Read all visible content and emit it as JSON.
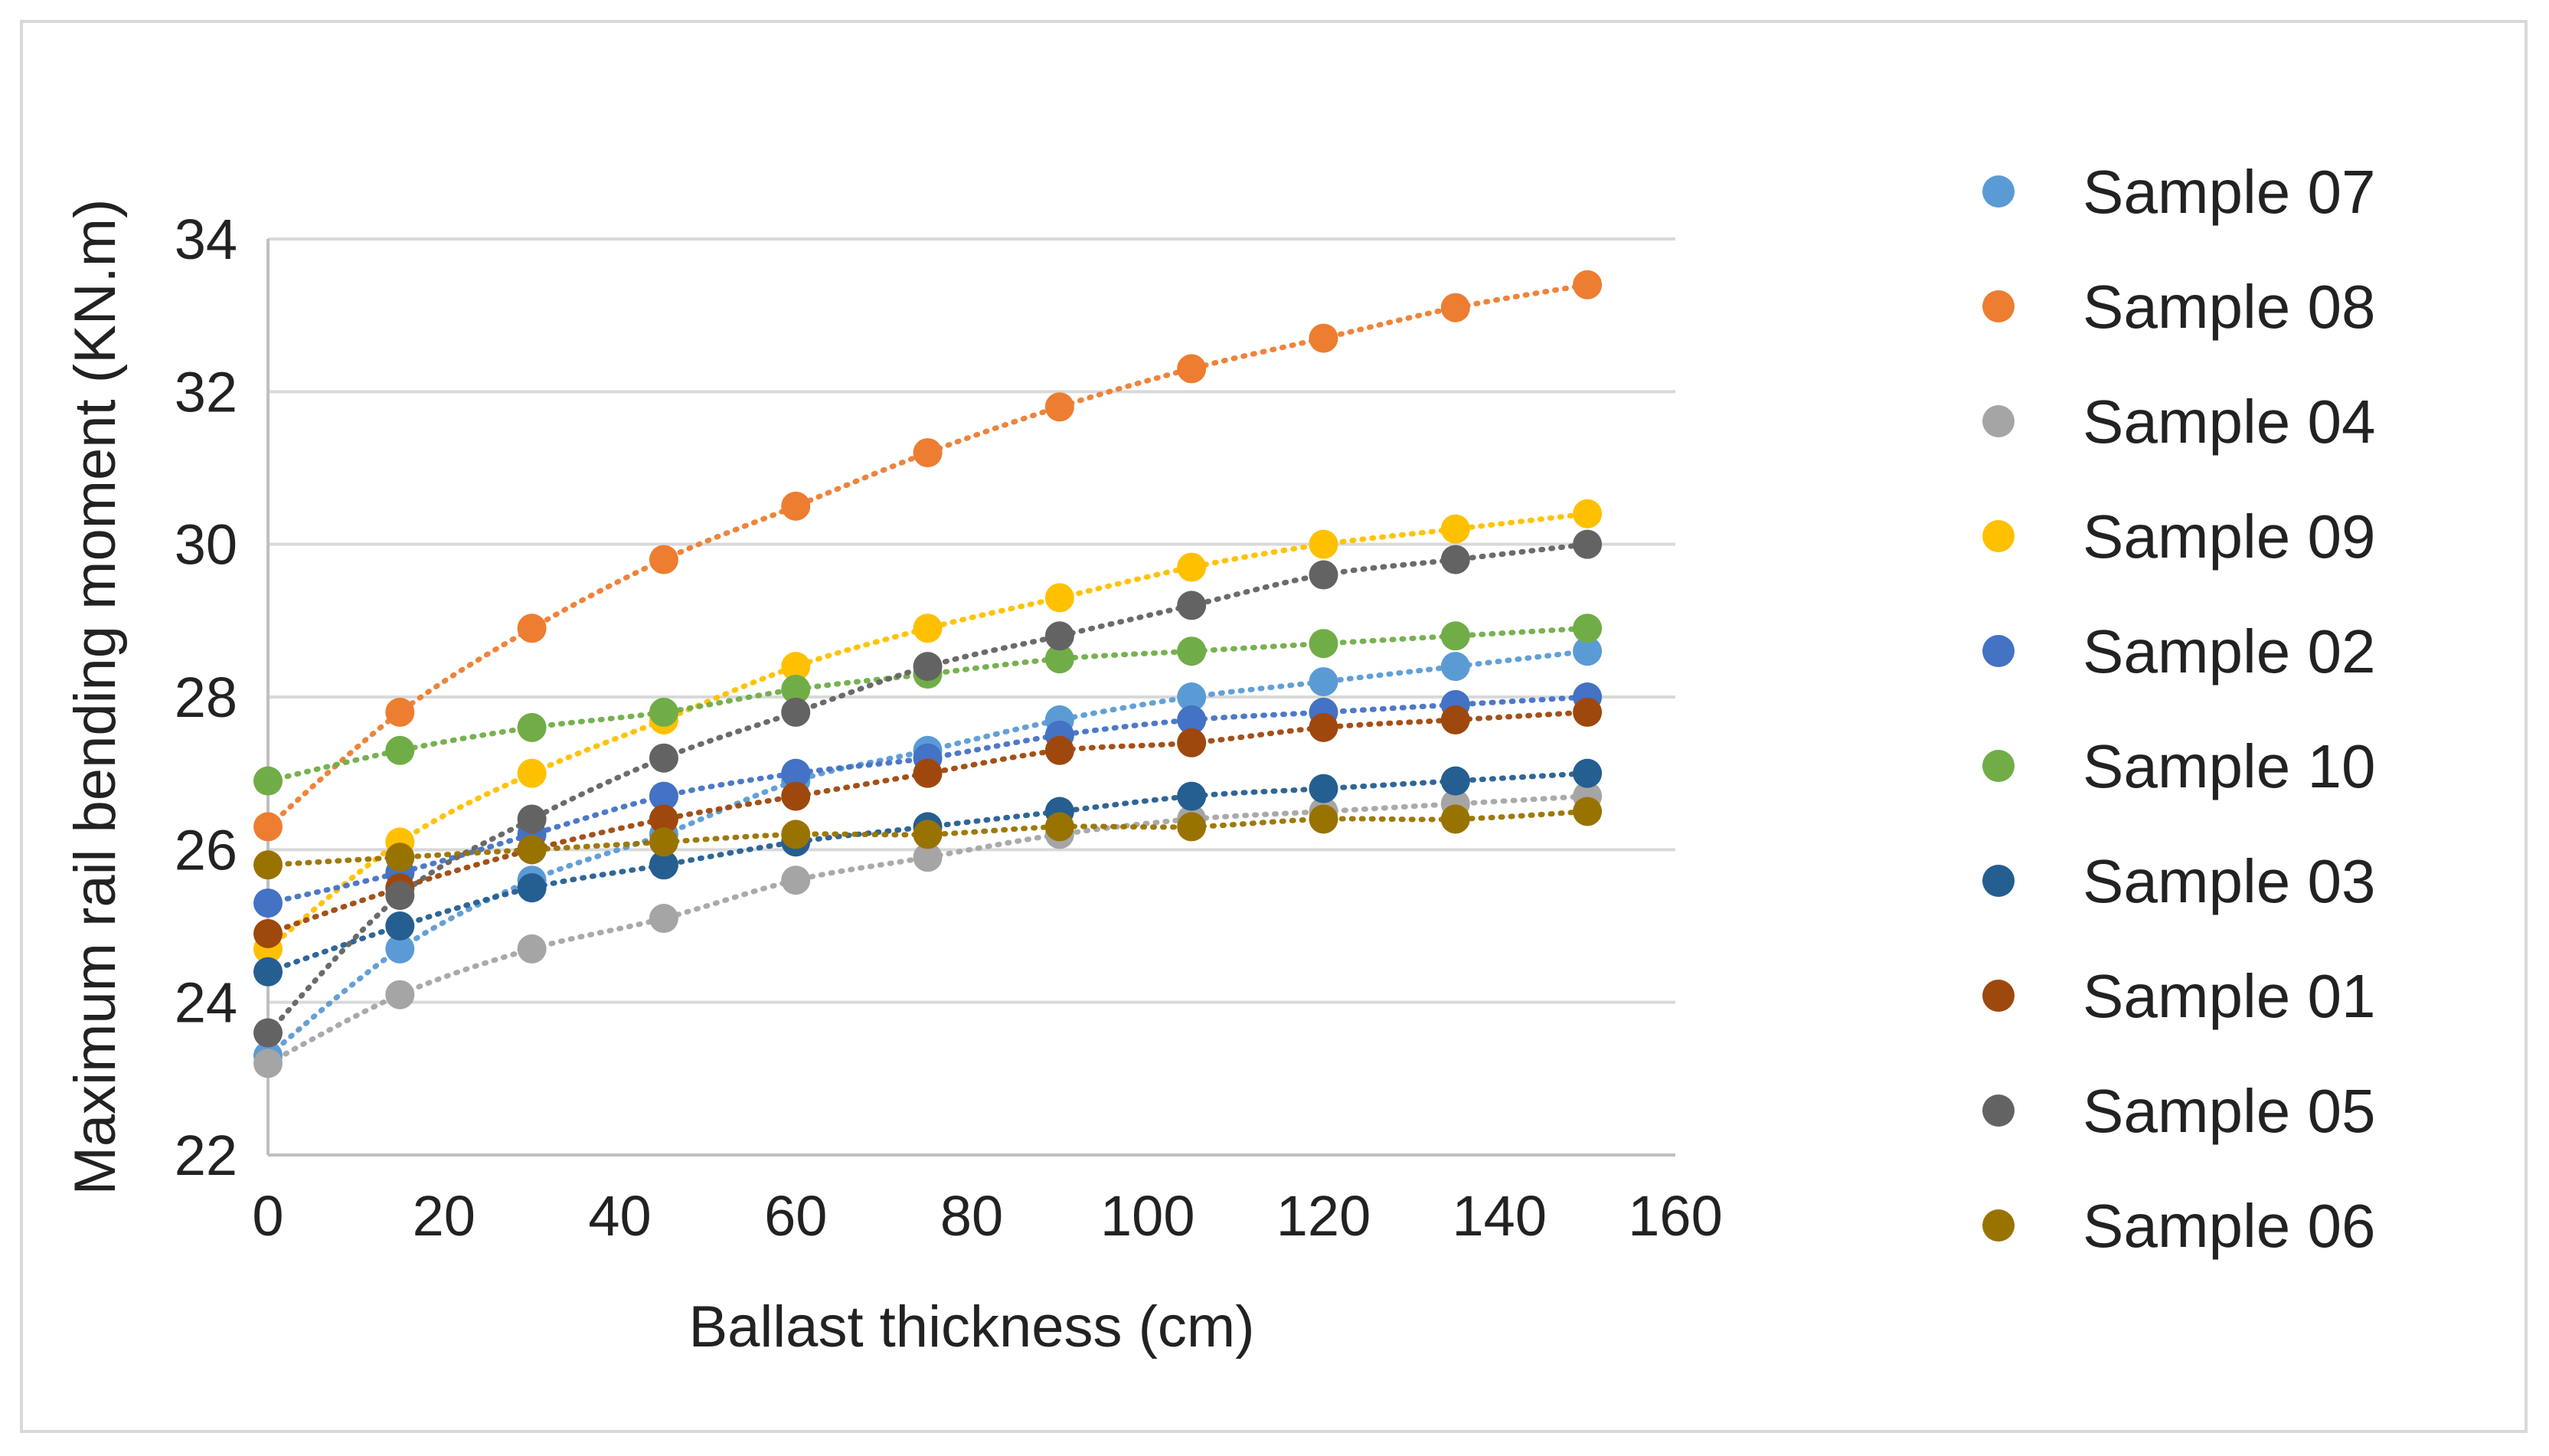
{
  "chart_data": {
    "type": "scatter",
    "title": "",
    "xlabel": "Ballast thickness (cm)",
    "ylabel": "Maximum rail bending moment (KN.m)",
    "xlim": [
      0,
      160
    ],
    "ylim": [
      22,
      34
    ],
    "xticks": [
      0,
      20,
      40,
      60,
      80,
      100,
      120,
      140,
      160
    ],
    "yticks": [
      22,
      24,
      26,
      28,
      30,
      32,
      34
    ],
    "grid": "horizontal",
    "legend_position": "right",
    "trendline_style": "dotted",
    "x": [
      0,
      15,
      30,
      45,
      60,
      75,
      90,
      105,
      120,
      135,
      150
    ],
    "series": [
      {
        "name": "Sample 07",
        "color": "#5B9BD5",
        "values": [
          23.3,
          24.7,
          25.6,
          26.2,
          26.9,
          27.3,
          27.7,
          28.0,
          28.2,
          28.4,
          28.6
        ]
      },
      {
        "name": "Sample 08",
        "color": "#ED7D31",
        "values": [
          26.3,
          27.8,
          28.9,
          29.8,
          30.5,
          31.2,
          31.8,
          32.3,
          32.7,
          33.1,
          33.4
        ]
      },
      {
        "name": "Sample 04",
        "color": "#A5A5A5",
        "values": [
          23.2,
          24.1,
          24.7,
          25.1,
          25.6,
          25.9,
          26.2,
          26.4,
          26.5,
          26.6,
          26.7
        ]
      },
      {
        "name": "Sample 09",
        "color": "#FFC000",
        "values": [
          24.7,
          26.1,
          27.0,
          27.7,
          28.4,
          28.9,
          29.3,
          29.7,
          30.0,
          30.2,
          30.4
        ]
      },
      {
        "name": "Sample 02",
        "color": "#4472C4",
        "values": [
          25.3,
          25.7,
          26.2,
          26.7,
          27.0,
          27.2,
          27.5,
          27.7,
          27.8,
          27.9,
          28.0
        ]
      },
      {
        "name": "Sample 10",
        "color": "#70AD47",
        "values": [
          26.9,
          27.3,
          27.6,
          27.8,
          28.1,
          28.3,
          28.5,
          28.6,
          28.7,
          28.8,
          28.9
        ]
      },
      {
        "name": "Sample 03",
        "color": "#255E91",
        "values": [
          24.4,
          25.0,
          25.5,
          25.8,
          26.1,
          26.3,
          26.5,
          26.7,
          26.8,
          26.9,
          27.0
        ]
      },
      {
        "name": "Sample 01",
        "color": "#9E480E",
        "values": [
          24.9,
          25.5,
          26.0,
          26.4,
          26.7,
          27.0,
          27.3,
          27.4,
          27.6,
          27.7,
          27.8
        ]
      },
      {
        "name": "Sample 05",
        "color": "#636363",
        "values": [
          23.6,
          25.4,
          26.4,
          27.2,
          27.8,
          28.4,
          28.8,
          29.2,
          29.6,
          29.8,
          30.0
        ]
      },
      {
        "name": "Sample 06",
        "color": "#997300",
        "values": [
          25.8,
          25.9,
          26.0,
          26.1,
          26.2,
          26.2,
          26.3,
          26.3,
          26.4,
          26.4,
          26.5
        ]
      }
    ]
  }
}
